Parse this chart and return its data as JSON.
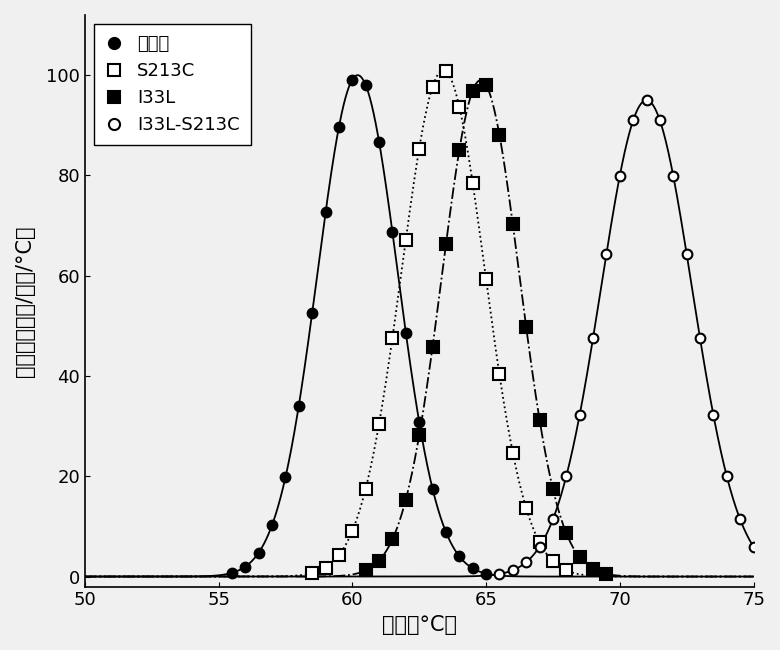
{
  "title": "",
  "xlabel": "温度（°C）",
  "ylabel": "热容量（千卡/摩尔/°C）",
  "xlim": [
    50,
    75
  ],
  "ylim": [
    -2,
    112
  ],
  "xticks": [
    50,
    55,
    60,
    65,
    70,
    75
  ],
  "yticks": [
    0,
    20,
    40,
    60,
    80,
    100
  ],
  "series": [
    {
      "label": "野生型",
      "peak": 60.2,
      "sigma": 1.5,
      "amplitude": 100,
      "color": "#000000",
      "marker": "o",
      "markerfacecolor": "#000000",
      "linestyle": "-",
      "markersize": 7,
      "linewidth": 1.3
    },
    {
      "label": "S213C",
      "peak": 63.4,
      "sigma": 1.55,
      "amplitude": 101,
      "color": "#000000",
      "marker": "s",
      "markerfacecolor": "white",
      "linestyle": ":",
      "markersize": 8,
      "linewidth": 1.3
    },
    {
      "label": "I33L",
      "peak": 64.8,
      "sigma": 1.45,
      "amplitude": 99,
      "color": "#000000",
      "marker": "s",
      "markerfacecolor": "#000000",
      "linestyle": "-.",
      "markersize": 8,
      "linewidth": 1.3
    },
    {
      "label": "I33L-S213C",
      "peak": 71.0,
      "sigma": 1.7,
      "amplitude": 95,
      "color": "#000000",
      "marker": "o",
      "markerfacecolor": "white",
      "linestyle": "-",
      "markersize": 7,
      "linewidth": 1.3
    }
  ],
  "background_color": "#f0f0f0",
  "figsize": [
    7.8,
    6.5
  ],
  "dpi": 100,
  "font_size_label": 15,
  "font_size_tick": 13,
  "font_size_legend": 13
}
